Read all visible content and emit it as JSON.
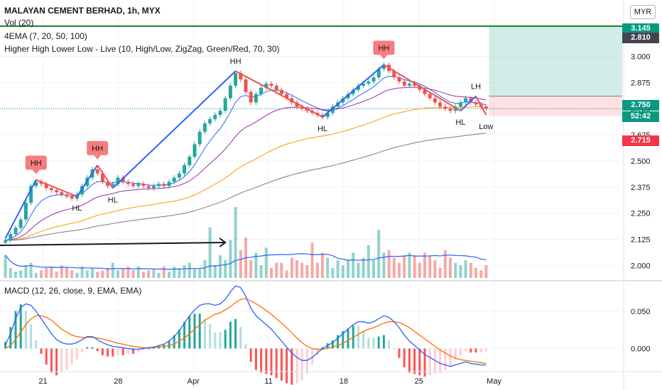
{
  "header": {
    "title": "MALAYAN CEMENT BERHAD, 1h, MYX",
    "vol_label": "Vol (20)",
    "ema_label": "4EMA (7, 20, 50, 100)",
    "hhll_label": "Higher High Lower Low - Live (10, High/Low, ZigZag, Green/Red, 70, 30)",
    "macd_label": "MACD (12, 26, close, 9, EMA, EMA)"
  },
  "currency_button": "MYR",
  "price_pills": [
    {
      "value": 3.145,
      "label": "3.145",
      "color": "#089981"
    },
    {
      "value": 2.81,
      "label": "2.810",
      "color": "#434651"
    },
    {
      "value": 2.75,
      "label": "2.750",
      "color": "#089981"
    },
    {
      "value": 2.73,
      "label": "52:42",
      "color": "#089981"
    },
    {
      "value": 2.715,
      "label": "2.715",
      "color": "#f23645"
    }
  ],
  "colors": {
    "up": "#26a69a",
    "down": "#ef5350",
    "zigzag": "#2962ff",
    "ema7": "#2962ff",
    "ema20": "#9c27b0",
    "ema50": "#ff9800",
    "ema100": "#787b86",
    "target": "#089981",
    "macd": "#2962ff",
    "signal": "#ff6d00"
  },
  "chart_data": [
    {
      "type": "candlestick",
      "title": "MALAYAN CEMENT BERHAD, 1h, MYX",
      "y_ticks": [
        "3.000",
        "2.875",
        "2.750",
        "2.625",
        "2.500",
        "2.375",
        "2.250",
        "2.125",
        "2.000"
      ],
      "y_tick_values": [
        3.0,
        2.875,
        2.75,
        2.625,
        2.5,
        2.375,
        2.25,
        2.125,
        2.0
      ],
      "ylim": [
        1.93,
        3.27
      ],
      "x_ticks": [
        "21",
        "28",
        "Apr",
        "11",
        "18",
        "25",
        "May"
      ],
      "x_tick_positions": [
        10,
        30,
        50,
        70,
        90,
        110,
        130
      ],
      "last_price": 2.75,
      "countdown": "52:42",
      "target_level": 3.145,
      "entry_level": 2.81,
      "stop_level": 2.715,
      "close": [
        2.12,
        2.15,
        2.18,
        2.22,
        2.3,
        2.38,
        2.4,
        2.39,
        2.37,
        2.36,
        2.35,
        2.34,
        2.33,
        2.32,
        2.34,
        2.38,
        2.42,
        2.46,
        2.44,
        2.4,
        2.38,
        2.39,
        2.42,
        2.4,
        2.39,
        2.38,
        2.39,
        2.38,
        2.37,
        2.38,
        2.39,
        2.38,
        2.4,
        2.42,
        2.44,
        2.48,
        2.52,
        2.58,
        2.64,
        2.68,
        2.7,
        2.72,
        2.74,
        2.8,
        2.86,
        2.92,
        2.89,
        2.83,
        2.78,
        2.82,
        2.85,
        2.87,
        2.86,
        2.84,
        2.82,
        2.8,
        2.78,
        2.76,
        2.75,
        2.74,
        2.73,
        2.72,
        2.71,
        2.73,
        2.76,
        2.78,
        2.8,
        2.82,
        2.84,
        2.86,
        2.87,
        2.88,
        2.9,
        2.94,
        2.96,
        2.93,
        2.9,
        2.88,
        2.86,
        2.87,
        2.86,
        2.84,
        2.82,
        2.8,
        2.78,
        2.76,
        2.75,
        2.74,
        2.76,
        2.78,
        2.8,
        2.78,
        2.77,
        2.76,
        2.75
      ],
      "zigzag": [
        {
          "i": 0,
          "price": 2.13
        },
        {
          "i": 6,
          "price": 2.41,
          "label": "HH"
        },
        {
          "i": 14,
          "price": 2.33,
          "label": "HL"
        },
        {
          "i": 18,
          "price": 2.48,
          "label": "HH"
        },
        {
          "i": 21,
          "price": 2.37,
          "label": "HL"
        },
        {
          "i": 45,
          "price": 2.93,
          "label": "HH"
        },
        {
          "i": 62,
          "price": 2.71,
          "label": "HL"
        },
        {
          "i": 74,
          "price": 2.96,
          "label": "HH"
        },
        {
          "i": 89,
          "price": 2.74,
          "label": "HL"
        },
        {
          "i": 92,
          "price": 2.81,
          "label": "LH"
        },
        {
          "i": 94,
          "price": 2.72,
          "label": "Low"
        }
      ],
      "annotations": [
        "HH",
        "HL",
        "HH",
        "HL",
        "HH",
        "HL",
        "HH",
        "HL",
        "LH",
        "Low"
      ]
    },
    {
      "type": "bar",
      "title": "Vol (20)",
      "values": [
        18,
        8,
        5,
        6,
        10,
        12,
        4,
        6,
        8,
        9,
        5,
        10,
        8,
        6,
        4,
        9,
        6,
        8,
        5,
        6,
        8,
        12,
        6,
        7,
        9,
        6,
        9,
        5,
        6,
        7,
        4,
        9,
        5,
        9,
        7,
        10,
        12,
        7,
        7,
        14,
        40,
        10,
        18,
        14,
        30,
        56,
        22,
        32,
        14,
        20,
        10,
        24,
        8,
        12,
        12,
        6,
        16,
        14,
        12,
        10,
        28,
        12,
        20,
        16,
        8,
        14,
        10,
        14,
        20,
        12,
        16,
        26,
        14,
        38,
        20,
        22,
        16,
        12,
        18,
        20,
        18,
        12,
        20,
        18,
        14,
        8,
        22,
        16,
        12,
        10,
        14,
        12,
        8,
        6,
        10
      ]
    },
    {
      "type": "line",
      "title": "MACD (12, 26, close, 9, EMA, EMA)",
      "y_ticks": [
        "0.050",
        "0.000"
      ],
      "y_tick_values": [
        0.05,
        0.0
      ],
      "ylim": [
        -0.03,
        0.09
      ],
      "macd": [
        0.005,
        0.02,
        0.04,
        0.055,
        0.06,
        0.058,
        0.05,
        0.04,
        0.03,
        0.02,
        0.012,
        0.008,
        0.006,
        0.006,
        0.008,
        0.012,
        0.016,
        0.016,
        0.012,
        0.008,
        0.005,
        0.003,
        0.002,
        0.001,
        0.0,
        -0.001,
        -0.001,
        0.0,
        0.001,
        0.002,
        0.004,
        0.006,
        0.01,
        0.016,
        0.024,
        0.034,
        0.044,
        0.052,
        0.058,
        0.06,
        0.06,
        0.058,
        0.06,
        0.066,
        0.076,
        0.084,
        0.082,
        0.07,
        0.054,
        0.044,
        0.038,
        0.032,
        0.026,
        0.018,
        0.01,
        0.002,
        -0.006,
        -0.012,
        -0.016,
        -0.016,
        -0.012,
        -0.006,
        0.0,
        0.004,
        0.008,
        0.014,
        0.02,
        0.026,
        0.032,
        0.036,
        0.036,
        0.034,
        0.036,
        0.04,
        0.044,
        0.042,
        0.036,
        0.028,
        0.018,
        0.01,
        0.004,
        -0.002,
        -0.008,
        -0.012,
        -0.016,
        -0.02,
        -0.022,
        -0.024,
        -0.022,
        -0.02,
        -0.018,
        -0.02,
        -0.021,
        -0.022,
        -0.022
      ],
      "signal": [
        0.0,
        0.004,
        0.012,
        0.022,
        0.032,
        0.04,
        0.044,
        0.044,
        0.042,
        0.038,
        0.032,
        0.026,
        0.022,
        0.018,
        0.016,
        0.015,
        0.015,
        0.015,
        0.014,
        0.013,
        0.011,
        0.009,
        0.007,
        0.006,
        0.004,
        0.003,
        0.002,
        0.001,
        0.001,
        0.001,
        0.002,
        0.003,
        0.004,
        0.006,
        0.01,
        0.014,
        0.02,
        0.026,
        0.032,
        0.038,
        0.042,
        0.046,
        0.048,
        0.052,
        0.056,
        0.062,
        0.066,
        0.067,
        0.064,
        0.06,
        0.056,
        0.051,
        0.046,
        0.04,
        0.034,
        0.028,
        0.021,
        0.014,
        0.008,
        0.003,
        0.0,
        -0.001,
        -0.001,
        0.0,
        0.002,
        0.004,
        0.007,
        0.011,
        0.015,
        0.019,
        0.023,
        0.026,
        0.028,
        0.031,
        0.034,
        0.036,
        0.036,
        0.035,
        0.032,
        0.028,
        0.023,
        0.018,
        0.013,
        0.008,
        0.003,
        -0.002,
        -0.006,
        -0.01,
        -0.013,
        -0.015,
        -0.016,
        -0.017,
        -0.018,
        -0.019,
        -0.02
      ]
    }
  ]
}
